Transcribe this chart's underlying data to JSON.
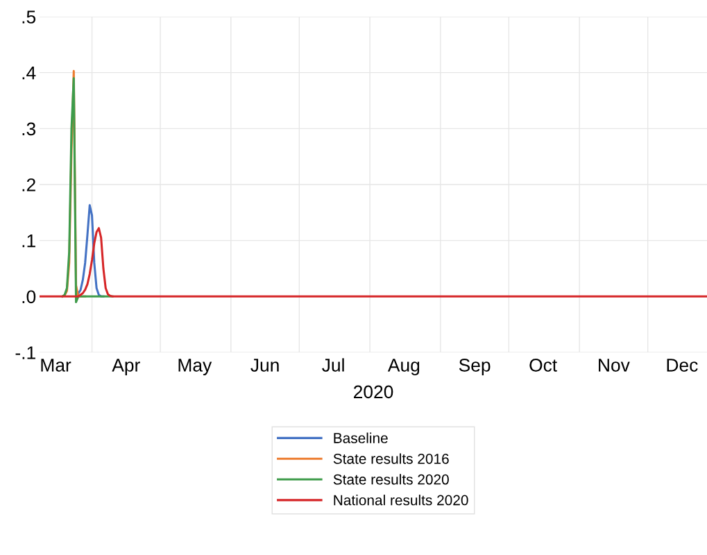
{
  "chart_data": {
    "type": "line",
    "xlabel": "2020",
    "x": [
      "2020-03-09",
      "2020-03-10",
      "2020-03-11",
      "2020-03-12",
      "2020-03-13",
      "2020-03-14",
      "2020-03-15",
      "2020-03-16",
      "2020-03-17",
      "2020-03-18",
      "2020-03-19",
      "2020-03-20",
      "2020-03-21",
      "2020-03-22",
      "2020-03-23",
      "2020-03-24",
      "2020-03-25",
      "2020-03-26",
      "2020-03-27",
      "2020-03-28",
      "2020-03-29",
      "2020-03-30",
      "2020-03-31",
      "2020-04-01",
      "2020-04-02",
      "2020-04-03",
      "2020-04-04",
      "2020-04-05",
      "2020-04-06",
      "2020-04-07",
      "2020-04-08",
      "2020-04-09",
      "2020-04-10",
      "2020-12-27"
    ],
    "series": [
      {
        "name": "Baseline",
        "color": "#4472c4",
        "x": [
          "2020-03-25",
          "2020-03-26",
          "2020-03-27",
          "2020-03-28",
          "2020-03-29",
          "2020-03-30",
          "2020-03-31",
          "2020-04-01",
          "2020-04-02",
          "2020-04-03",
          "2020-04-04",
          "2020-04-05",
          "2020-04-06"
        ],
        "values": [
          0,
          0.005,
          0.012,
          0.03,
          0.06,
          0.11,
          0.163,
          0.145,
          0.06,
          0.015,
          0.003,
          0,
          0
        ]
      },
      {
        "name": "State results 2016",
        "color": "#ed7d31",
        "x": [
          "2020-03-20",
          "2020-03-21",
          "2020-03-22",
          "2020-03-23",
          "2020-03-24",
          "2020-03-25",
          "2020-03-26",
          "2020-03-27",
          "2020-03-28",
          "2020-03-29"
        ],
        "values": [
          0.002,
          0.01,
          0.06,
          0.26,
          0.403,
          0.02,
          0,
          0,
          0,
          0
        ]
      },
      {
        "name": "State results 2020",
        "color": "#3e9b4a",
        "x": [
          "2020-03-19",
          "2020-03-20",
          "2020-03-21",
          "2020-03-22",
          "2020-03-23",
          "2020-03-24",
          "2020-03-25",
          "2020-03-26",
          "2020-03-27",
          "2020-03-28",
          "2020-03-29",
          "2020-03-30",
          "2020-03-31",
          "2020-04-01",
          "2020-04-02",
          "2020-04-03",
          "2020-04-04",
          "2020-04-05",
          "2020-04-06",
          "2020-04-07",
          "2020-04-08",
          "2020-04-09",
          "2020-04-10"
        ],
        "values": [
          0,
          0.003,
          0.015,
          0.08,
          0.3,
          0.39,
          -0.01,
          0,
          0,
          0,
          0,
          0,
          0,
          0,
          0,
          0,
          0,
          0,
          0,
          0,
          0,
          0,
          0
        ]
      },
      {
        "name": "National results 2020",
        "color": "#d62628",
        "values": [
          0,
          0,
          0,
          0,
          0,
          0,
          0,
          0,
          0,
          0,
          0,
          0,
          0,
          0,
          0,
          0,
          0,
          0,
          0.003,
          0.006,
          0.012,
          0.022,
          0.04,
          0.065,
          0.095,
          0.115,
          0.122,
          0.105,
          0.05,
          0.015,
          0.004,
          0.001,
          0,
          0
        ]
      }
    ],
    "xlim": [
      "2020-03-09",
      "2020-12-27"
    ],
    "xticks": [
      {
        "value": "2020-04-01",
        "label": null
      },
      {
        "value": "2020-05-01",
        "label": null
      },
      {
        "value": "2020-06-01",
        "label": null
      },
      {
        "value": "2020-07-01",
        "label": null
      },
      {
        "value": "2020-08-01",
        "label": null
      },
      {
        "value": "2020-09-01",
        "label": null
      },
      {
        "value": "2020-10-01",
        "label": null
      },
      {
        "value": "2020-11-01",
        "label": null
      },
      {
        "value": "2020-12-01",
        "label": null
      },
      {
        "value": "2020-03-16",
        "label": "Mar"
      },
      {
        "value": "2020-04-16",
        "label": "Apr"
      },
      {
        "value": "2020-05-16",
        "label": "May"
      },
      {
        "value": "2020-06-16",
        "label": "Jun"
      },
      {
        "value": "2020-07-16",
        "label": "Jul"
      },
      {
        "value": "2020-08-16",
        "label": "Aug"
      },
      {
        "value": "2020-09-16",
        "label": "Sep"
      },
      {
        "value": "2020-10-16",
        "label": "Oct"
      },
      {
        "value": "2020-11-16",
        "label": "Nov"
      },
      {
        "value": "2020-12-16",
        "label": "Dec"
      }
    ],
    "ylim": [
      -0.1,
      0.5
    ],
    "yticks": [
      {
        "value": -0.1,
        "label": "-.1"
      },
      {
        "value": 0.0,
        "label": ".0"
      },
      {
        "value": 0.1,
        "label": ".1"
      },
      {
        "value": 0.2,
        "label": ".2"
      },
      {
        "value": 0.3,
        "label": ".3"
      },
      {
        "value": 0.4,
        "label": ".4"
      },
      {
        "value": 0.5,
        "label": ".5"
      }
    ],
    "grid": true,
    "legend": "bottom",
    "marker": "none",
    "line_style": "solid"
  }
}
